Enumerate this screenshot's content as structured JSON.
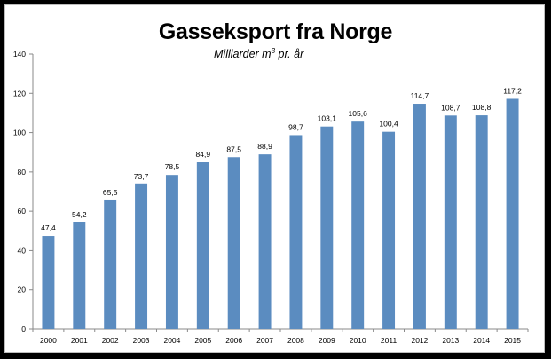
{
  "chart_data": {
    "type": "bar",
    "title": "Gasseksport fra Norge",
    "subtitle": {
      "before": "Milliarder m",
      "superscript": "3",
      "after": " pr. år"
    },
    "categories": [
      "2000",
      "2001",
      "2002",
      "2003",
      "2004",
      "2005",
      "2006",
      "2007",
      "2008",
      "2009",
      "2010",
      "2011",
      "2012",
      "2013",
      "2014",
      "2015"
    ],
    "values": [
      47.4,
      54.2,
      65.5,
      73.7,
      78.5,
      84.9,
      87.5,
      88.9,
      98.7,
      103.1,
      105.6,
      100.4,
      114.7,
      108.7,
      108.8,
      117.2
    ],
    "value_labels": [
      "47,4",
      "54,2",
      "65,5",
      "73,7",
      "78,5",
      "84,9",
      "87,5",
      "88,9",
      "98,7",
      "103,1",
      "105,6",
      "100,4",
      "114,7",
      "108,7",
      "108,8",
      "117,2"
    ],
    "ylim": [
      0,
      140
    ],
    "yticks": [
      0,
      20,
      40,
      60,
      80,
      100,
      120,
      140
    ],
    "grid": false,
    "legend": "none",
    "bar_color": "#5b8cc0",
    "axis_color": "#8a8a8a"
  }
}
